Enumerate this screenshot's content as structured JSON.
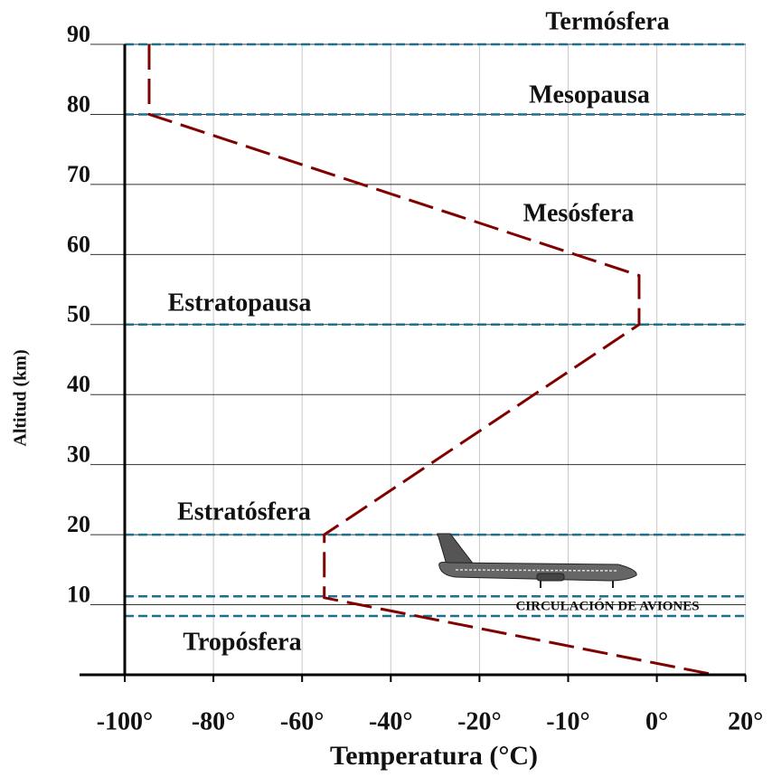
{
  "chart_data": {
    "type": "line",
    "x_label": "Temperatura (°C)",
    "y_label": "Altitud (km)",
    "series": [
      {
        "color": "#800000",
        "x": [
          -94.5,
          -94.5,
          -2,
          -2,
          -55,
          -55,
          13
        ],
        "values": [
          90,
          80,
          57,
          50,
          20,
          11,
          0
        ]
      }
    ],
    "xlim": [
      -100,
      20
    ],
    "xticks": [
      {
        "value": -100,
        "label": "-100°"
      },
      {
        "value": -80,
        "label": "-80°"
      },
      {
        "value": -60,
        "label": "-60°"
      },
      {
        "value": -40,
        "label": "-40°"
      },
      {
        "value": -20,
        "label": "-20°"
      },
      {
        "value": -10,
        "label": "-10°"
      },
      {
        "value": 0,
        "label": "0°"
      },
      {
        "value": 20,
        "label": "20°"
      }
    ],
    "ylim": [
      0,
      90
    ],
    "yticks": [
      10,
      20,
      30,
      40,
      50,
      60,
      70,
      80,
      90
    ],
    "grid": true,
    "reference_lines": {
      "color": "#1f6f8f",
      "values": [
        90,
        80,
        50,
        20,
        11.2,
        8.4
      ]
    },
    "annotations": [
      "Termósfera",
      "Mesopausa",
      "Mesósfera",
      "Estratopausa",
      "Estratósfera",
      "Tropósfera",
      "CIRCULACIÓN DE AVIONES"
    ]
  }
}
